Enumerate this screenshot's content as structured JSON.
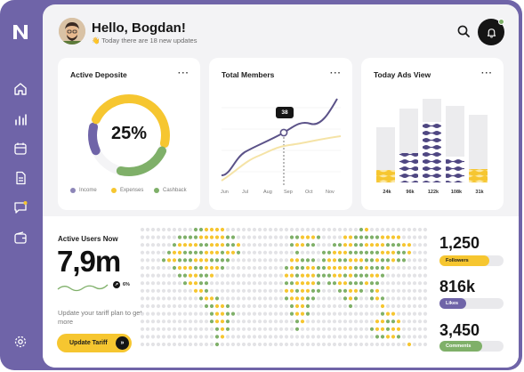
{
  "header": {
    "greeting": "Hello, Bogdan!",
    "subtitle": "👋 Today there are 18 new updates"
  },
  "sidebar": {
    "items": [
      {
        "icon": "home-icon"
      },
      {
        "icon": "bar-chart-icon"
      },
      {
        "icon": "calendar-icon"
      },
      {
        "icon": "document-icon"
      },
      {
        "icon": "chat-icon"
      },
      {
        "icon": "wallet-icon"
      },
      {
        "icon": "gear-icon"
      }
    ]
  },
  "deposit": {
    "title": "Active Deposite",
    "menu": "···",
    "percent_label": "25%",
    "segments": [
      {
        "name": "Income",
        "color": "#6f64a8",
        "fraction": 0.14
      },
      {
        "name": "Expenses",
        "color": "#f6c630",
        "fraction": 0.5
      },
      {
        "name": "Cashback",
        "color": "#7fb069",
        "fraction": 0.25
      }
    ],
    "legend": [
      "Income",
      "Expenses",
      "Cashback"
    ]
  },
  "members": {
    "title": "Total Members",
    "menu": "···",
    "tooltip": "38",
    "months": [
      "Jun",
      "Jul",
      "Aug",
      "Sep",
      "Oct",
      "Nov"
    ]
  },
  "ads": {
    "title": "Today Ads View",
    "menu": "···",
    "bars": [
      {
        "label": "24k",
        "fill": 0.22
      },
      {
        "label": "96k",
        "fill": 0.4
      },
      {
        "label": "122k",
        "fill": 0.72
      },
      {
        "label": "108k",
        "fill": 0.34
      },
      {
        "label": "31k",
        "fill": 0.2
      }
    ]
  },
  "active_users": {
    "title": "Active Users Now",
    "value": "7,9m",
    "trend": "6%",
    "tariff_text": "Update your tariff plan to get more",
    "tariff_button": "Update Tariff",
    "tariff_arrow": "»"
  },
  "stats": [
    {
      "value": "1,250",
      "label": "Followers",
      "color": "#f6c630",
      "text_color": "#1c1c1c",
      "fill": 0.78
    },
    {
      "value": "816k",
      "label": "Likes",
      "color": "#6f64a8",
      "text_color": "#ffffff",
      "fill": 0.42
    },
    {
      "value": "3,450",
      "label": "Comments",
      "color": "#7fb069",
      "text_color": "#ffffff",
      "fill": 0.66
    }
  ]
}
